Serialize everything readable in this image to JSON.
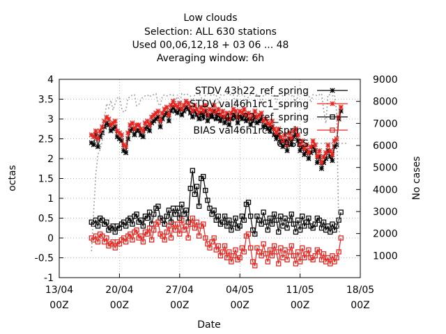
{
  "chart_data": {
    "type": "line",
    "title_lines": [
      "Low clouds",
      "Selection: ALL    630 stations",
      "Used  00,06,12,18  + 03 06 ... 48",
      "Averaging window:  6h"
    ],
    "xlabel": "Date",
    "ylabel": "octas",
    "y2label": "No cases",
    "x_ticks": [
      {
        "day": 0,
        "line1": "13/04",
        "line2": "00Z"
      },
      {
        "day": 7,
        "line1": "20/04",
        "line2": "00Z"
      },
      {
        "day": 14,
        "line1": "27/04",
        "line2": "00Z"
      },
      {
        "day": 21,
        "line1": "04/05",
        "line2": "00Z"
      },
      {
        "day": 28,
        "line1": "11/05",
        "line2": "00Z"
      },
      {
        "day": 35,
        "line1": "18/05",
        "line2": "00Z"
      }
    ],
    "xlim": [
      0,
      35
    ],
    "ylim": [
      -1,
      4
    ],
    "y_ticks": [
      -1,
      -0.5,
      0,
      0.5,
      1,
      1.5,
      2,
      2.5,
      3,
      3.5,
      4
    ],
    "y2lim": [
      0,
      9000
    ],
    "y2_ticks": [
      1000,
      2000,
      3000,
      4000,
      5000,
      6000,
      7000,
      8000,
      9000
    ],
    "grid": true,
    "legend_position": "top-right",
    "series": [
      {
        "name": "STDV 43h22_ref_spring",
        "axis": "y",
        "color": "#000000",
        "marker": "star",
        "x_start": 3.75,
        "x_step": 0.25,
        "values": [
          2.4,
          2.35,
          2.6,
          2.3,
          2.55,
          2.65,
          2.8,
          2.9,
          2.85,
          2.7,
          2.75,
          2.8,
          2.55,
          2.5,
          2.45,
          2.2,
          2.15,
          2.5,
          2.7,
          2.75,
          2.6,
          2.7,
          2.72,
          2.6,
          2.55,
          2.75,
          2.8,
          2.7,
          2.9,
          2.95,
          3.0,
          3.05,
          2.8,
          3.0,
          3.1,
          3.15,
          2.95,
          3.2,
          3.3,
          3.2,
          3.15,
          3.25,
          3.1,
          3.2,
          3.3,
          3.25,
          3.15,
          3.05,
          3.2,
          3.1,
          3.0,
          3.15,
          3.05,
          3.2,
          2.95,
          3.1,
          3.05,
          3.2,
          3.0,
          3.1,
          2.95,
          3.05,
          2.9,
          3.0,
          2.85,
          3.0,
          3.1,
          3.05,
          2.9,
          3.05,
          3.0,
          3.1,
          2.95,
          3.0,
          2.85,
          2.95,
          3.05,
          2.9,
          2.95,
          3.0,
          2.8,
          2.85,
          2.75,
          2.7,
          2.8,
          2.6,
          2.5,
          2.6,
          2.4,
          2.3,
          2.45,
          2.2,
          2.5,
          2.35,
          2.55,
          2.6,
          2.45,
          2.2,
          2.3,
          2.1,
          2.2,
          2.0,
          2.15,
          2.3,
          2.2,
          1.9,
          2.05,
          1.75,
          1.9,
          2.0,
          2.2,
          2.05,
          1.95,
          2.3,
          2.35,
          3.0,
          3.2
        ]
      },
      {
        "name": "STDV val46h1rc1_spring",
        "axis": "y",
        "color": "#e8231e",
        "marker": "star",
        "x_start": 3.75,
        "x_step": 0.25,
        "values": [
          2.6,
          2.55,
          2.7,
          2.5,
          2.7,
          2.8,
          2.95,
          3.05,
          3.0,
          2.85,
          2.9,
          2.95,
          2.7,
          2.65,
          2.6,
          2.35,
          2.3,
          2.65,
          2.85,
          2.9,
          2.75,
          2.85,
          2.85,
          2.75,
          2.7,
          2.9,
          2.95,
          2.85,
          3.05,
          3.1,
          3.15,
          3.2,
          2.95,
          3.15,
          3.25,
          3.3,
          3.1,
          3.35,
          3.45,
          3.35,
          3.3,
          3.4,
          3.25,
          3.35,
          3.45,
          3.4,
          3.3,
          3.2,
          3.35,
          3.25,
          3.15,
          3.3,
          3.2,
          3.35,
          3.1,
          3.25,
          3.2,
          3.35,
          3.15,
          3.25,
          3.1,
          3.2,
          3.05,
          3.15,
          3.0,
          3.15,
          3.25,
          3.2,
          3.05,
          3.2,
          3.15,
          3.25,
          3.1,
          3.15,
          3.0,
          3.1,
          3.2,
          3.05,
          3.1,
          3.15,
          2.95,
          3.0,
          2.9,
          2.85,
          2.95,
          2.75,
          2.65,
          2.75,
          2.55,
          2.45,
          2.6,
          2.35,
          2.65,
          2.5,
          2.7,
          2.75,
          2.6,
          2.35,
          2.45,
          2.25,
          2.35,
          2.15,
          2.3,
          2.45,
          2.35,
          2.05,
          2.2,
          1.9,
          2.05,
          2.15,
          2.35,
          2.2,
          2.1,
          2.45,
          2.5,
          3.05,
          3.3
        ]
      },
      {
        "name": "BIAS 43h22_ref_spring",
        "axis": "y",
        "color": "#000000",
        "marker": "square",
        "x_start": 3.75,
        "x_step": 0.25,
        "values": [
          0.4,
          0.35,
          0.45,
          0.3,
          0.5,
          0.45,
          0.35,
          0.4,
          0.2,
          0.25,
          0.3,
          0.15,
          0.3,
          0.25,
          0.35,
          0.4,
          0.3,
          0.45,
          0.5,
          0.35,
          0.55,
          0.6,
          0.4,
          0.45,
          0.3,
          0.55,
          0.5,
          0.65,
          0.35,
          0.6,
          0.75,
          0.8,
          0.5,
          0.45,
          0.35,
          0.55,
          0.7,
          0.4,
          0.75,
          0.6,
          0.75,
          0.5,
          0.85,
          0.6,
          0.7,
          0.4,
          1.25,
          1.7,
          1.1,
          1.3,
          0.8,
          1.5,
          1.55,
          1.2,
          0.95,
          0.75,
          0.6,
          0.7,
          0.45,
          0.55,
          0.35,
          0.4,
          0.55,
          0.3,
          0.45,
          0.2,
          0.35,
          0.5,
          0.25,
          0.3,
          0.55,
          0.45,
          0.85,
          0.9,
          0.55,
          0.2,
          0.1,
          0.55,
          0.45,
          0.35,
          0.65,
          0.4,
          0.2,
          0.5,
          0.35,
          0.6,
          0.45,
          0.15,
          0.55,
          0.3,
          0.5,
          0.25,
          0.45,
          0.6,
          0.35,
          0.15,
          0.45,
          0.2,
          0.55,
          0.3,
          0.4,
          0.5,
          0.3,
          0.25,
          0.35,
          0.5,
          0.45,
          0.25,
          0.4,
          0.2,
          0.3,
          0.15,
          0.35,
          0.2,
          0.3,
          0.45,
          0.65
        ]
      },
      {
        "name": "BIAS val46h1rc1_spring",
        "axis": "y",
        "color": "#e8231e",
        "marker": "square",
        "x_start": 3.75,
        "x_step": 0.25,
        "values": [
          0.0,
          -0.05,
          0.05,
          -0.1,
          0.1,
          0.05,
          -0.1,
          0.0,
          -0.2,
          -0.15,
          -0.1,
          -0.25,
          -0.1,
          -0.15,
          -0.05,
          0.0,
          -0.1,
          0.05,
          0.1,
          -0.05,
          0.15,
          0.2,
          0.0,
          0.05,
          -0.1,
          0.15,
          0.1,
          0.25,
          -0.05,
          0.2,
          0.35,
          0.4,
          0.1,
          0.05,
          -0.05,
          0.15,
          0.3,
          0.0,
          0.35,
          0.2,
          0.35,
          0.1,
          0.45,
          0.2,
          0.3,
          0.0,
          0.35,
          0.5,
          0.25,
          0.4,
          0.05,
          0.3,
          0.35,
          0.0,
          -0.15,
          -0.25,
          -0.1,
          0.0,
          -0.3,
          -0.2,
          -0.45,
          -0.35,
          -0.2,
          -0.5,
          -0.35,
          -0.6,
          -0.45,
          -0.3,
          -0.55,
          -0.5,
          -0.25,
          -0.35,
          0.05,
          0.1,
          -0.25,
          -0.6,
          -0.7,
          -0.25,
          -0.35,
          -0.45,
          -0.15,
          -0.4,
          -0.6,
          -0.3,
          -0.45,
          -0.2,
          -0.35,
          -0.65,
          -0.25,
          -0.5,
          -0.3,
          -0.55,
          -0.35,
          -0.2,
          -0.45,
          -0.65,
          -0.35,
          -0.6,
          -0.25,
          -0.5,
          -0.4,
          -0.3,
          -0.5,
          -0.55,
          -0.45,
          -0.3,
          -0.35,
          -0.55,
          -0.4,
          -0.6,
          -0.5,
          -0.65,
          -0.45,
          -0.6,
          -0.5,
          -0.35,
          0.0
        ]
      },
      {
        "name": "CASES",
        "axis": "y2",
        "color": "#a0a0a0",
        "style": "dotted",
        "x_start": 3.75,
        "x_step": 0.25,
        "values": [
          1200,
          3000,
          4700,
          5600,
          5800,
          6200,
          7100,
          7900,
          7700,
          8050,
          7600,
          7900,
          8150,
          8200,
          7700,
          7500,
          7600,
          8150,
          8200,
          8300,
          8300,
          7800,
          7850,
          8100,
          8200,
          8250,
          8300,
          8200,
          8300,
          8300,
          8350,
          7900,
          7800,
          8250,
          8300,
          8250,
          8300,
          8300,
          8300,
          7900,
          8300,
          7850,
          8350,
          8300,
          8350,
          8300,
          8250,
          7950,
          8300,
          8350,
          8350,
          8200,
          7900,
          8300,
          8350,
          8300,
          8250,
          8300,
          8300,
          7900,
          8300,
          8250,
          8300,
          8350,
          8300,
          8300,
          8300,
          7800,
          8350,
          8300,
          8300,
          8300,
          7900,
          8250,
          8300,
          8350,
          8300,
          8300,
          8250,
          7850,
          8300,
          8300,
          8350,
          8300,
          8250,
          8300,
          7950,
          8350,
          8300,
          8250,
          8300,
          8350,
          8300,
          8250,
          8300,
          7800,
          8300,
          8350,
          8300,
          8300,
          8250,
          8300,
          7950,
          8300,
          8300,
          8250,
          8300,
          8350,
          7600,
          7000,
          8300,
          8300,
          8250,
          8300,
          7500,
          2200,
          1700
        ]
      }
    ]
  }
}
